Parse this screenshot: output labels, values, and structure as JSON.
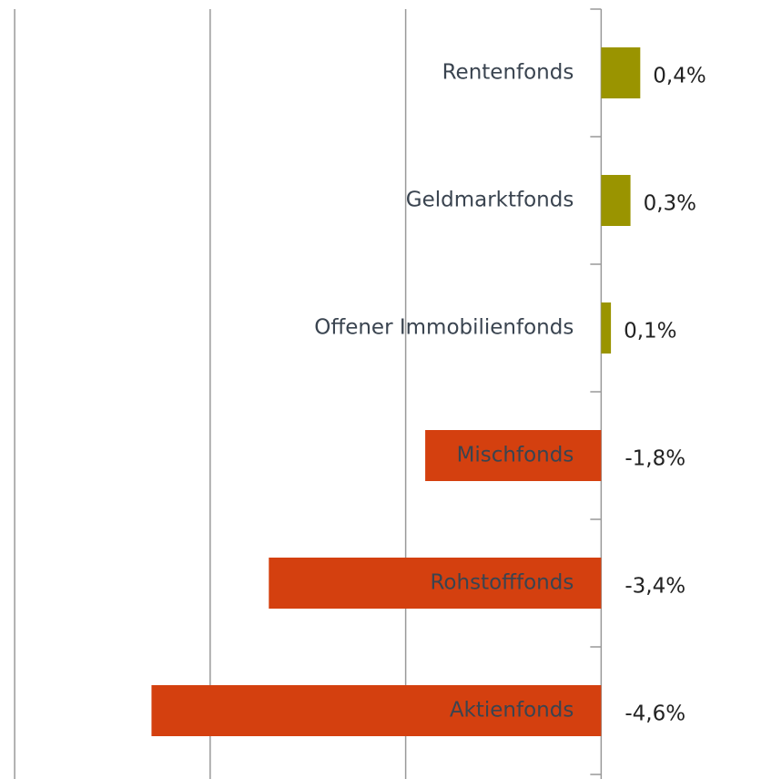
{
  "chart_data": {
    "type": "hbar",
    "categories": [
      "Rentenfonds",
      "Geldmarktfonds",
      "Offener Immobilienfonds",
      "Mischfonds",
      "Rohstofffonds",
      "Aktienfonds"
    ],
    "values": [
      0.4,
      0.3,
      0.1,
      -1.8,
      -3.4,
      -4.6
    ],
    "value_labels": [
      "0,4%",
      "0,3%",
      "0,1%",
      "-1,8%",
      "-3,4%",
      "-4,6%"
    ],
    "colors": [
      "#9a9400",
      "#9a9400",
      "#9a9400",
      "#d4400f",
      "#d4400f",
      "#d4400f"
    ],
    "xlim": [
      -6.15,
      1.85
    ],
    "xticks": [
      -6,
      -4,
      -2,
      0
    ],
    "grid": true
  }
}
